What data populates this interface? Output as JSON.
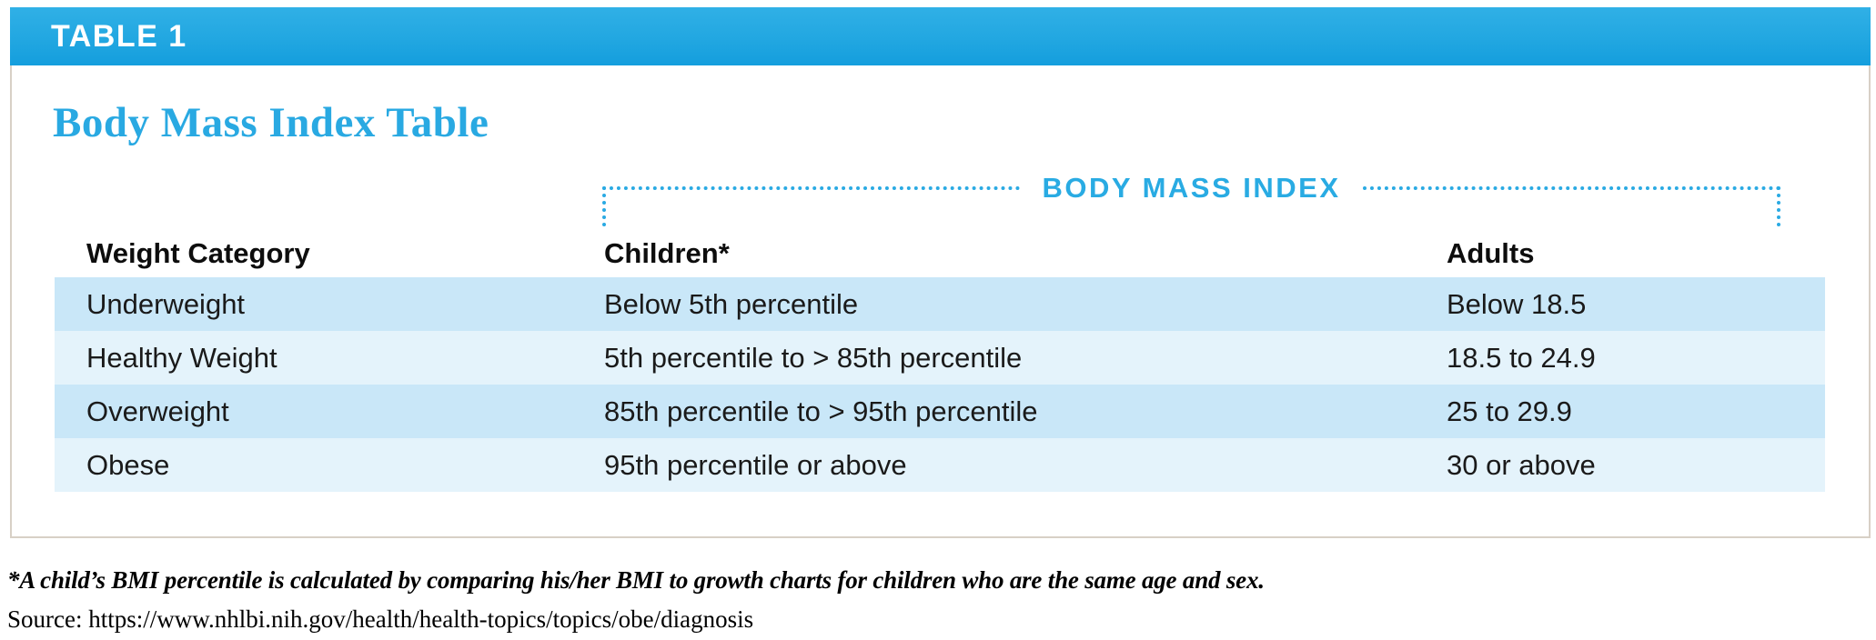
{
  "header": {
    "tag": "TABLE 1"
  },
  "card": {
    "title": "Body Mass Index Table",
    "bracket_label": "BODY MASS INDEX"
  },
  "chart_data": {
    "type": "table",
    "title": "Body Mass Index Table",
    "group_header": "BODY MASS INDEX",
    "group_header_spans": [
      "Children*",
      "Adults"
    ],
    "columns": [
      "Weight Category",
      "Children*",
      "Adults"
    ],
    "rows": [
      [
        "Underweight",
        "Below 5th percentile",
        "Below 18.5"
      ],
      [
        "Healthy Weight",
        "5th percentile to > 85th percentile",
        "18.5 to 24.9"
      ],
      [
        "Overweight",
        "85th percentile to > 95th percentile",
        "25 to 29.9"
      ],
      [
        "Obese",
        "95th percentile or above",
        "30 or above"
      ]
    ]
  },
  "footnote": "*A child’s BMI percentile is calculated by comparing his/her BMI to growth charts for children who are the same age and sex.",
  "source": "Source: https://www.nhlbi.nih.gov/health/health-topics/topics/obe/diagnosis",
  "colors": {
    "bar_gradient_top": "#30b0e6",
    "bar_gradient_bottom": "#149edd",
    "accent_blue": "#29a9e2",
    "row_dark": "#c9e7f8",
    "row_light": "#e4f3fb",
    "card_border": "#d8d0c6",
    "text": "#1a1a1a"
  }
}
